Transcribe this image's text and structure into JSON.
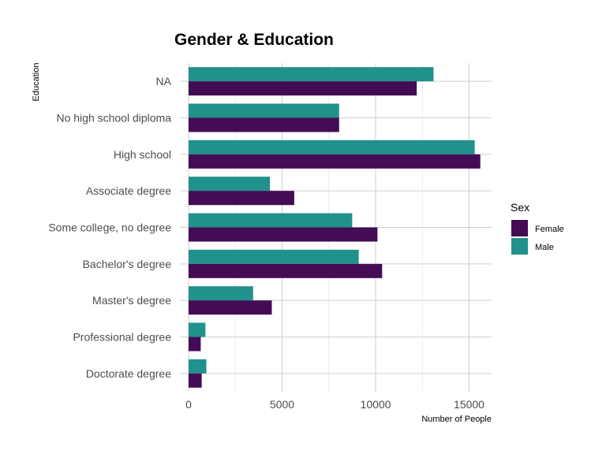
{
  "chart_data": {
    "type": "bar",
    "orientation": "horizontal",
    "title": "Gender & Education",
    "xlabel": "Number of People",
    "ylabel": "Education",
    "xlim": [
      0,
      16300
    ],
    "x_ticks": [
      0,
      5000,
      10000,
      15000
    ],
    "x_tick_labels": [
      "0",
      "5000",
      "10000",
      "15000"
    ],
    "grid": true,
    "legend": {
      "title": "Sex",
      "position": "right"
    },
    "categories": [
      "NA",
      "No high school diploma",
      "High school",
      "Associate degree",
      "Some college, no degree",
      "Bachelor's degree",
      "Master's degree",
      "Professional degree",
      "Doctorate degree"
    ],
    "series": [
      {
        "name": "Female",
        "color": "#440c55",
        "values": [
          12200,
          8050,
          15600,
          5650,
          10100,
          10350,
          4450,
          650,
          700
        ]
      },
      {
        "name": "Male",
        "color": "#21918c",
        "values": [
          13100,
          8050,
          15300,
          4350,
          8750,
          9100,
          3450,
          900,
          950
        ]
      }
    ]
  }
}
